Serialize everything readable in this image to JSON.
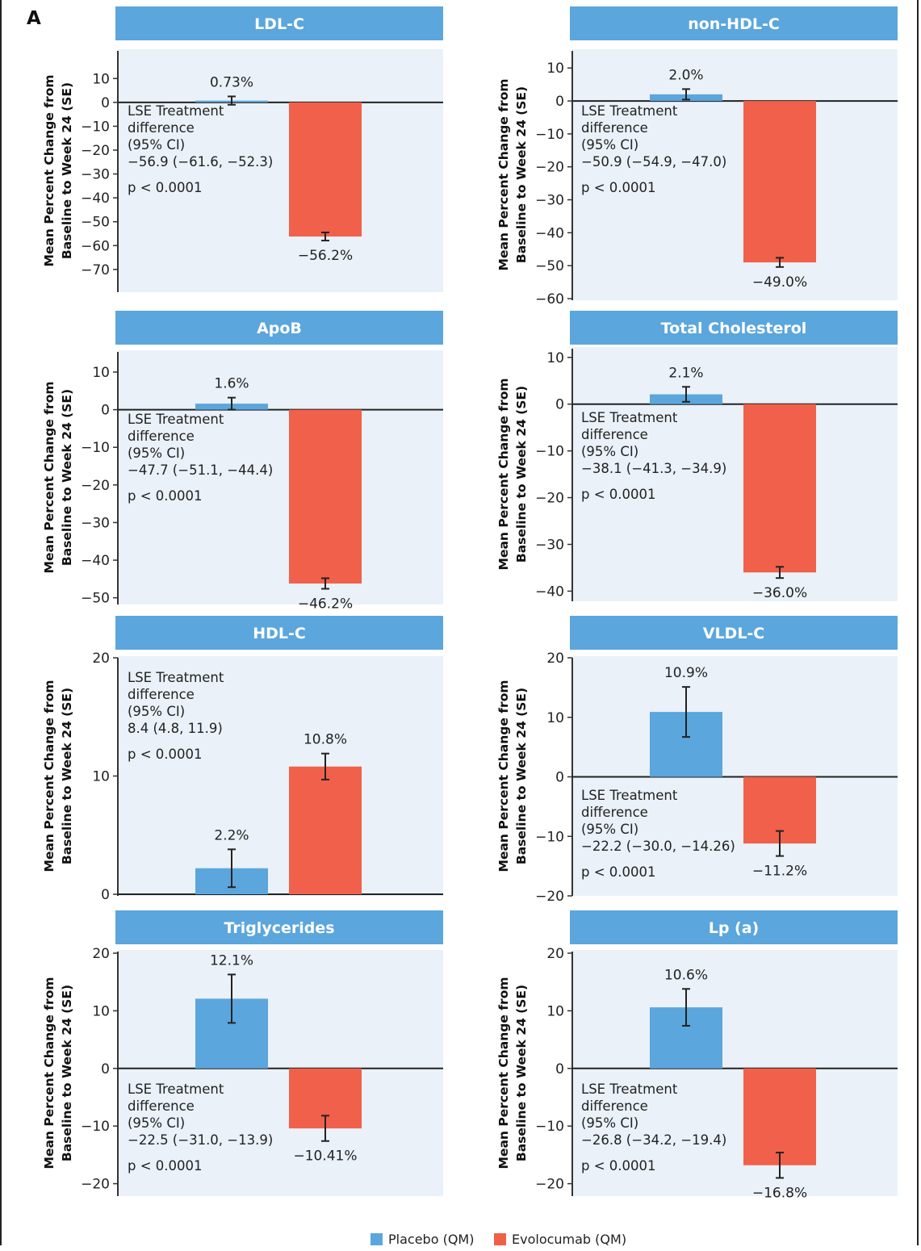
{
  "panel_label": "A",
  "colors": {
    "placebo": "#5ba6dc",
    "evolocumab": "#f0604a",
    "header": "#5ba6dc",
    "plot_bg": "#eaf1f8"
  },
  "legend": [
    {
      "name": "Placebo (QM)",
      "color": "#5ba6dc"
    },
    {
      "name": "Evolocumab (QM)",
      "color": "#f0604a"
    }
  ],
  "chart_data": [
    {
      "type": "bar",
      "title": "LDL-C",
      "ylabel": [
        "Mean Percent Change from",
        "Baseline to Week 24 (SE)"
      ],
      "ylim": [
        -78,
        15
      ],
      "yticks": [
        10,
        0,
        -10,
        -20,
        -30,
        -40,
        -50,
        -60,
        -70
      ],
      "series": [
        {
          "name": "Placebo (QM)",
          "value": 0.73,
          "se_low": -1.0,
          "se_high": 2.5,
          "label": "0.73%"
        },
        {
          "name": "Evolocumab (QM)",
          "value": -56.2,
          "se_low": -57.9,
          "se_high": -54.5,
          "label": "−56.2%"
        }
      ],
      "annotation": [
        "LSE Treatment",
        "difference",
        "(95% CI)",
        "−56.9 (−61.6, −52.3)",
        "p < 0.0001"
      ]
    },
    {
      "type": "bar",
      "title": "non-HDL-C",
      "ylabel": [
        "Mean Percent Change from",
        "Baseline to Week 24 (SE)"
      ],
      "ylim": [
        -60,
        13
      ],
      "yticks": [
        10,
        0,
        -10,
        -20,
        -30,
        -40,
        -50,
        -60
      ],
      "series": [
        {
          "name": "Placebo (QM)",
          "value": 2.0,
          "se_low": 0.4,
          "se_high": 3.6,
          "label": "2.0%"
        },
        {
          "name": "Evolocumab (QM)",
          "value": -49.0,
          "se_low": -50.4,
          "se_high": -47.6,
          "label": "−49.0%"
        }
      ],
      "annotation": [
        "LSE Treatment",
        "difference",
        "(95% CI)",
        "−50.9 (−54.9, −47.0)",
        "p < 0.0001"
      ]
    },
    {
      "type": "bar",
      "title": "ApoB",
      "ylabel": [
        "Mean Percent Change from",
        "Baseline to Week 24 (SE)"
      ],
      "ylim": [
        -52,
        13
      ],
      "yticks": [
        10,
        0,
        -10,
        -20,
        -30,
        -40,
        -50
      ],
      "series": [
        {
          "name": "Placebo (QM)",
          "value": 1.6,
          "se_low": 0.0,
          "se_high": 3.2,
          "label": "1.6%"
        },
        {
          "name": "Evolocumab (QM)",
          "value": -46.2,
          "se_low": -47.6,
          "se_high": -44.8,
          "label": "−46.2%"
        }
      ],
      "annotation": [
        "LSE Treatment",
        "difference",
        "(95% CI)",
        "−47.7 (−51.1, −44.4)",
        "p < 0.0001"
      ]
    },
    {
      "type": "bar",
      "title": "Total Cholesterol",
      "ylabel": [
        "Mean Percent Change from",
        "Baseline to Week 24 (SE)"
      ],
      "ylim": [
        -42,
        11
      ],
      "yticks": [
        10,
        0,
        -10,
        -20,
        -30,
        -40
      ],
      "series": [
        {
          "name": "Placebo (QM)",
          "value": 2.1,
          "se_low": 0.5,
          "se_high": 3.7,
          "label": "2.1%"
        },
        {
          "name": "Evolocumab (QM)",
          "value": -36.0,
          "se_low": -37.2,
          "se_high": -34.8,
          "label": "−36.0%"
        }
      ],
      "annotation": [
        "LSE Treatment",
        "difference",
        "(95% CI)",
        "−38.1 (−41.3, −34.9)",
        "p < 0.0001"
      ]
    },
    {
      "type": "bar",
      "title": "HDL-C",
      "ylabel": [
        "Mean Percent Change from",
        "Baseline to Week 24 (SE)"
      ],
      "ylim": [
        0,
        20
      ],
      "yticks": [
        20,
        10,
        0
      ],
      "series": [
        {
          "name": "Placebo (QM)",
          "value": 2.2,
          "se_low": 0.6,
          "se_high": 3.8,
          "label": "2.2%"
        },
        {
          "name": "Evolocumab (QM)",
          "value": 10.8,
          "se_low": 9.7,
          "se_high": 11.9,
          "label": "10.8%"
        }
      ],
      "annotation": [
        "LSE Treatment",
        "difference",
        "(95% CI)",
        "8.4 (4.8, 11.9)",
        "p < 0.0001"
      ]
    },
    {
      "type": "bar",
      "title": "VLDL-C",
      "ylabel": [
        "Mean Percent Change from",
        "Baseline to Week 24 (SE)"
      ],
      "ylim": [
        -20,
        20
      ],
      "yticks": [
        20,
        10,
        0,
        -10,
        -20
      ],
      "series": [
        {
          "name": "Placebo (QM)",
          "value": 10.9,
          "se_low": 6.7,
          "se_high": 15.1,
          "label": "10.9%"
        },
        {
          "name": "Evolocumab (QM)",
          "value": -11.2,
          "se_low": -13.3,
          "se_high": -9.1,
          "label": "−11.2%"
        }
      ],
      "annotation": [
        "LSE Treatment",
        "difference",
        "(95% CI)",
        "−22.2 (−30.0, −14.26)",
        "p < 0.0001"
      ]
    },
    {
      "type": "bar",
      "title": "Triglycerides",
      "ylabel": [
        "Mean Percent Change from",
        "Baseline to Week 24 (SE)"
      ],
      "ylim": [
        -23,
        20
      ],
      "yticks": [
        20,
        10,
        0,
        -10,
        -20
      ],
      "series": [
        {
          "name": "Placebo (QM)",
          "value": 12.1,
          "se_low": 7.9,
          "se_high": 16.3,
          "label": "12.1%"
        },
        {
          "name": "Evolocumab (QM)",
          "value": -10.41,
          "se_low": -12.6,
          "se_high": -8.2,
          "label": "−10.41%"
        }
      ],
      "annotation": [
        "LSE Treatment",
        "difference",
        "(95% CI)",
        "−22.5 (−31.0, −13.9)",
        "p < 0.0001"
      ]
    },
    {
      "type": "bar",
      "title": "Lp (a)",
      "ylabel": [
        "Mean Percent Change from",
        "Baseline to Week 24 (SE)"
      ],
      "ylim": [
        -23,
        20
      ],
      "yticks": [
        20,
        10,
        0,
        -10,
        -20
      ],
      "series": [
        {
          "name": "Placebo (QM)",
          "value": 10.6,
          "se_low": 7.4,
          "se_high": 13.8,
          "label": "10.6%"
        },
        {
          "name": "Evolocumab (QM)",
          "value": -16.8,
          "se_low": -19.0,
          "se_high": -14.6,
          "label": "−16.8%"
        }
      ],
      "annotation": [
        "LSE Treatment",
        "difference",
        "(95% CI)",
        "−26.8 (−34.2, −19.4)",
        "p < 0.0001"
      ]
    }
  ]
}
